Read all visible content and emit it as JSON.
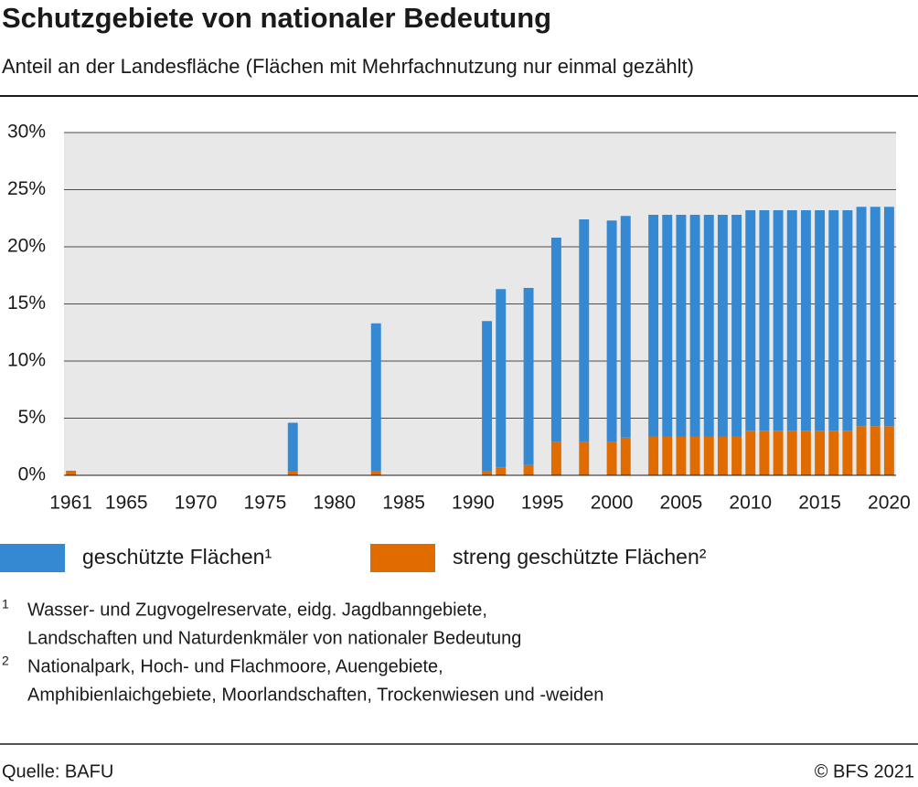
{
  "chart_data": {
    "type": "bar",
    "stacked": true,
    "title": "Schutzgebiete von nationaler Bedeutung",
    "subtitle": "Anteil an der Landesfläche (Flächen mit Mehrfachnutzung nur einmal gezählt)",
    "x": [
      1961,
      1977,
      1983,
      1991,
      1992,
      1994,
      1996,
      1998,
      2000,
      2001,
      2003,
      2004,
      2005,
      2006,
      2007,
      2008,
      2009,
      2010,
      2011,
      2012,
      2013,
      2014,
      2015,
      2016,
      2017,
      2018,
      2019,
      2020
    ],
    "series": [
      {
        "name": "geschützte Flächen¹",
        "color": "#3589d2",
        "values": [
          0,
          4.2,
          12.9,
          13.1,
          15.6,
          15.5,
          17.9,
          19.5,
          19.4,
          19.4,
          19.4,
          19.4,
          19.4,
          19.4,
          19.4,
          19.4,
          19.4,
          19.3,
          19.3,
          19.3,
          19.3,
          19.3,
          19.3,
          19.3,
          19.3,
          19.2,
          19.2,
          19.2
        ]
      },
      {
        "name": "streng geschützte Flächen²",
        "color": "#e06c00",
        "values": [
          0.4,
          0.4,
          0.4,
          0.4,
          0.7,
          0.9,
          2.9,
          2.9,
          2.9,
          3.3,
          3.4,
          3.4,
          3.4,
          3.4,
          3.4,
          3.4,
          3.4,
          3.9,
          3.9,
          3.9,
          3.9,
          3.9,
          3.9,
          3.9,
          3.9,
          4.3,
          4.3,
          4.3
        ]
      }
    ],
    "xlim": [
      1960.5,
      2020.5
    ],
    "xticks": [
      1961,
      1965,
      1970,
      1975,
      1980,
      1985,
      1990,
      1995,
      2000,
      2005,
      2010,
      2015,
      2020
    ],
    "ylim": [
      0,
      30
    ],
    "yticks": [
      {
        "value": 0,
        "label": "0%"
      },
      {
        "value": 5,
        "label": "5%"
      },
      {
        "value": 10,
        "label": "10%"
      },
      {
        "value": 15,
        "label": "15%"
      },
      {
        "value": 20,
        "label": "20%"
      },
      {
        "value": 25,
        "label": "25%"
      },
      {
        "value": 30,
        "label": "30%"
      }
    ],
    "grid": true,
    "footnotes": [
      {
        "marker": "1",
        "lines": [
          "Wasser- und Zugvogelreservate, eidg. Jagdbanngebiete,",
          "Landschaften und Naturdenkmäler von nationaler Bedeutung"
        ]
      },
      {
        "marker": "2",
        "lines": [
          "Nationalpark, Hoch- und Flachmoore, Auengebiete,",
          "Amphibienlaichgebiete, Moorlandschaften, Trockenwiesen und -weiden"
        ]
      }
    ],
    "source": "Quelle: BAFU",
    "copyright": "© BFS 2021"
  }
}
